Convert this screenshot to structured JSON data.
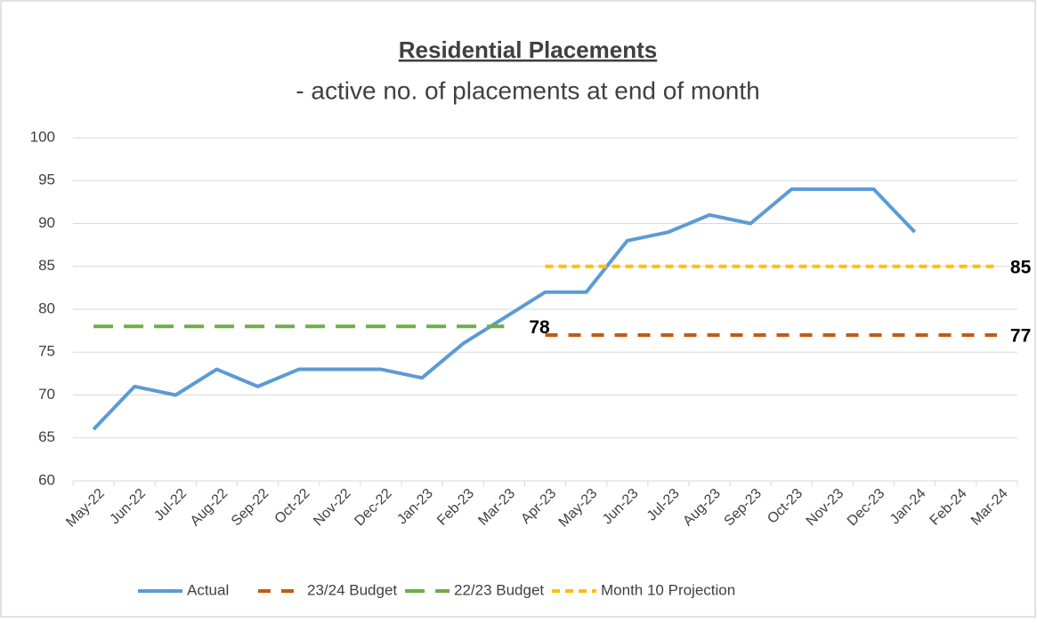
{
  "chart_data": {
    "type": "line",
    "title": "Residential Placements",
    "subtitle": "- active no. of placements at end of month",
    "categories": [
      "May-22",
      "Jun-22",
      "Jul-22",
      "Aug-22",
      "Sep-22",
      "Oct-22",
      "Nov-22",
      "Dec-22",
      "Jan-23",
      "Feb-23",
      "Mar-23",
      "Apr-23",
      "May-23",
      "Jun-23",
      "Jul-23",
      "Aug-23",
      "Sep-23",
      "Oct-23",
      "Nov-23",
      "Dec-23",
      "Jan-24",
      "Feb-24",
      "Mar-24"
    ],
    "series": [
      {
        "name": "Actual",
        "color": "#5b9bd5",
        "values": [
          66,
          71,
          70,
          73,
          71,
          73,
          73,
          73,
          72,
          76,
          79,
          82,
          82,
          88,
          89,
          91,
          90,
          94,
          94,
          94,
          89,
          null,
          null
        ]
      },
      {
        "name": "23/24 Budget",
        "color": "#c55a11",
        "values": [
          null,
          null,
          null,
          null,
          null,
          null,
          null,
          null,
          null,
          null,
          null,
          77,
          77,
          77,
          77,
          77,
          77,
          77,
          77,
          77,
          77,
          77,
          77
        ]
      },
      {
        "name": "22/23 Budget",
        "color": "#70ad47",
        "values": [
          78,
          78,
          78,
          78,
          78,
          78,
          78,
          78,
          78,
          78,
          78,
          null,
          null,
          null,
          null,
          null,
          null,
          null,
          null,
          null,
          null,
          null,
          null
        ]
      },
      {
        "name": "Month 10 Projection",
        "color": "#ffc000",
        "values": [
          null,
          null,
          null,
          null,
          null,
          null,
          null,
          null,
          null,
          null,
          null,
          85,
          85,
          85,
          85,
          85,
          85,
          85,
          85,
          85,
          85,
          85,
          85
        ]
      }
    ],
    "ylim": [
      60,
      100
    ],
    "yticks": [
      60,
      65,
      70,
      75,
      80,
      85,
      90,
      95,
      100
    ],
    "grid": true,
    "legend": "bottom"
  }
}
